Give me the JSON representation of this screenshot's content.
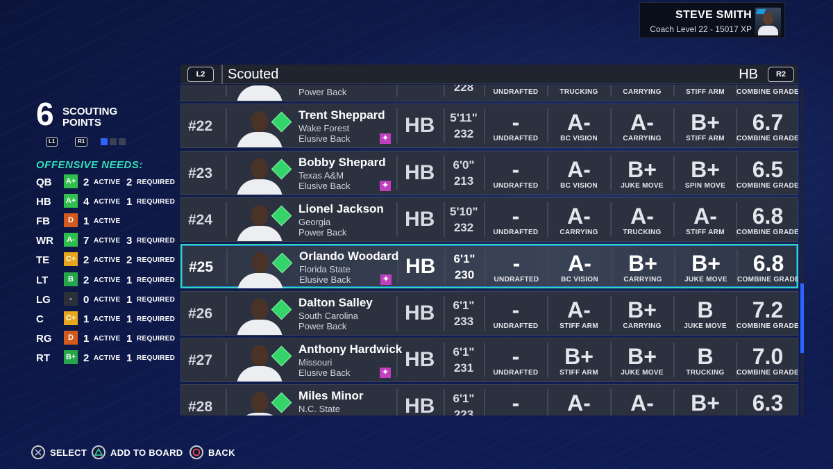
{
  "profile": {
    "name": "STEVE SMITH",
    "subtitle": "Coach Level 22 - 15017 XP"
  },
  "scouting": {
    "points": "6",
    "points_label_1": "SCOUTING",
    "points_label_2": "POINTS",
    "left_button": "L1",
    "right_button": "R1",
    "pips": [
      "#2f63ff",
      "#3a4156",
      "#3a4156"
    ]
  },
  "needs": {
    "title": "OFFENSIVE NEEDS:",
    "active_label": "ACTIVE",
    "required_label": "REQUIRED",
    "rows": [
      {
        "pos": "QB",
        "grade": "A+",
        "color": "#2fbf4e",
        "active": "2",
        "required": "2"
      },
      {
        "pos": "HB",
        "grade": "A+",
        "color": "#2fbf4e",
        "active": "4",
        "required": "1"
      },
      {
        "pos": "FB",
        "grade": "D",
        "color": "#d35a1e",
        "active": "1",
        "required": ""
      },
      {
        "pos": "WR",
        "grade": "A-",
        "color": "#2fbf4e",
        "active": "7",
        "required": "3"
      },
      {
        "pos": "TE",
        "grade": "C+",
        "color": "#e6a51a",
        "active": "2",
        "required": "2"
      },
      {
        "pos": "LT",
        "grade": "B",
        "color": "#25a64a",
        "active": "2",
        "required": "1"
      },
      {
        "pos": "LG",
        "grade": "-",
        "color": "#2a2f3a",
        "active": "0",
        "required": "1"
      },
      {
        "pos": "C",
        "grade": "C+",
        "color": "#e6a51a",
        "active": "1",
        "required": "1"
      },
      {
        "pos": "RG",
        "grade": "D",
        "color": "#d35a1e",
        "active": "1",
        "required": "1"
      },
      {
        "pos": "RT",
        "grade": "B+",
        "color": "#25a64a",
        "active": "2",
        "required": "1"
      }
    ]
  },
  "header": {
    "left_trigger": "L2",
    "title": "Scouted",
    "position": "HB",
    "right_trigger": "R2"
  },
  "players": [
    {
      "rank": "",
      "name": "",
      "school": "",
      "archetype": "Power Back",
      "pos": "",
      "height": "",
      "weight": "228",
      "draft": "-",
      "draft_label": "UNDRAFTED",
      "t1": "",
      "t1_label": "TRUCKING",
      "t2": "",
      "t2_label": "CARRYING",
      "t3": "",
      "t3_label": "STIFF ARM",
      "grade": "",
      "grade_label": "COMBINE GRADE",
      "dev": false
    },
    {
      "rank": "#22",
      "name": "Trent Sheppard",
      "school": "Wake Forest",
      "archetype": "Elusive Back",
      "pos": "HB",
      "height": "5'11\"",
      "weight": "232",
      "draft": "-",
      "draft_label": "UNDRAFTED",
      "t1": "A-",
      "t1_label": "BC VISION",
      "t2": "A-",
      "t2_label": "CARRYING",
      "t3": "B+",
      "t3_label": "STIFF ARM",
      "grade": "6.7",
      "grade_label": "COMBINE GRADE",
      "dev": true
    },
    {
      "rank": "#23",
      "name": "Bobby Shepard",
      "school": "Texas A&M",
      "archetype": "Elusive Back",
      "pos": "HB",
      "height": "6'0\"",
      "weight": "213",
      "draft": "-",
      "draft_label": "UNDRAFTED",
      "t1": "A-",
      "t1_label": "BC VISION",
      "t2": "B+",
      "t2_label": "JUKE MOVE",
      "t3": "B+",
      "t3_label": "SPIN MOVE",
      "grade": "6.5",
      "grade_label": "COMBINE GRADE",
      "dev": true
    },
    {
      "rank": "#24",
      "name": "Lionel Jackson",
      "school": "Georgia",
      "archetype": "Power Back",
      "pos": "HB",
      "height": "5'10\"",
      "weight": "232",
      "draft": "-",
      "draft_label": "UNDRAFTED",
      "t1": "A-",
      "t1_label": "CARRYING",
      "t2": "A-",
      "t2_label": "TRUCKING",
      "t3": "A-",
      "t3_label": "STIFF ARM",
      "grade": "6.8",
      "grade_label": "COMBINE GRADE",
      "dev": false
    },
    {
      "rank": "#25",
      "name": "Orlando Woodard",
      "school": "Florida State",
      "archetype": "Elusive Back",
      "pos": "HB",
      "height": "6'1\"",
      "weight": "230",
      "draft": "-",
      "draft_label": "UNDRAFTED",
      "t1": "A-",
      "t1_label": "BC VISION",
      "t2": "B+",
      "t2_label": "CARRYING",
      "t3": "B+",
      "t3_label": "JUKE MOVE",
      "grade": "6.8",
      "grade_label": "COMBINE GRADE",
      "dev": true
    },
    {
      "rank": "#26",
      "name": "Dalton Salley",
      "school": "South Carolina",
      "archetype": "Power Back",
      "pos": "HB",
      "height": "6'1\"",
      "weight": "233",
      "draft": "-",
      "draft_label": "UNDRAFTED",
      "t1": "A-",
      "t1_label": "STIFF ARM",
      "t2": "B+",
      "t2_label": "CARRYING",
      "t3": "B",
      "t3_label": "JUKE MOVE",
      "grade": "7.2",
      "grade_label": "COMBINE GRADE",
      "dev": false
    },
    {
      "rank": "#27",
      "name": "Anthony Hardwick",
      "school": "Missouri",
      "archetype": "Elusive Back",
      "pos": "HB",
      "height": "6'1\"",
      "weight": "231",
      "draft": "-",
      "draft_label": "UNDRAFTED",
      "t1": "B+",
      "t1_label": "STIFF ARM",
      "t2": "B+",
      "t2_label": "JUKE MOVE",
      "t3": "B",
      "t3_label": "TRUCKING",
      "grade": "7.0",
      "grade_label": "COMBINE GRADE",
      "dev": true
    },
    {
      "rank": "#28",
      "name": "Miles Minor",
      "school": "N.C. State",
      "archetype": "",
      "pos": "HB",
      "height": "6'1\"",
      "weight": "223",
      "draft": "-",
      "draft_label": "",
      "t1": "A-",
      "t1_label": "",
      "t2": "A-",
      "t2_label": "",
      "t3": "B+",
      "t3_label": "",
      "grade": "6.3",
      "grade_label": "",
      "dev": false
    }
  ],
  "selected_index": 4,
  "hints": {
    "select": "SELECT",
    "add": "ADD TO BOARD",
    "back": "BACK"
  },
  "colors": {
    "accent": "#2ed9b0",
    "gem": "#35d46a",
    "dev_badge": "#c03fbf",
    "scroll": "#2f63ff"
  }
}
